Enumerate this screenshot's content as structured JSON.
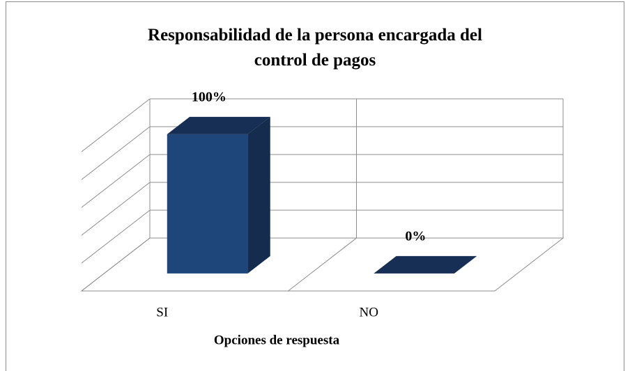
{
  "chart_data": {
    "type": "bar3d",
    "title": "Responsabilidad de la persona encargada del\ncontrol de pagos",
    "x_label": "Opciones de respuesta",
    "categories": [
      "SI",
      "NO"
    ],
    "values": [
      100,
      0
    ],
    "value_labels": [
      "100%",
      "0%"
    ],
    "color": "#1f467a",
    "ylim": [
      0,
      100
    ],
    "yticks": [
      0,
      20,
      40,
      60,
      80,
      100
    ],
    "grid": true
  }
}
